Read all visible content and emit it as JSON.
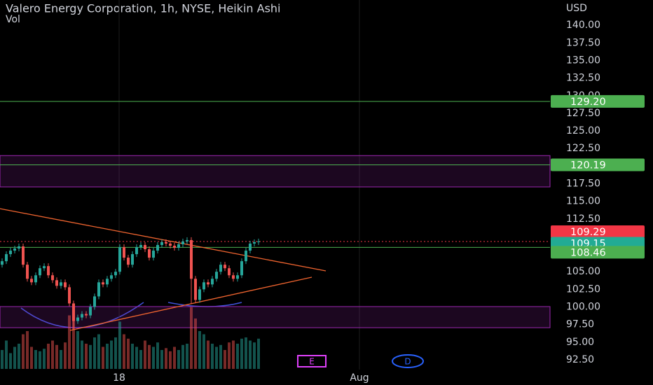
{
  "chart_data": {
    "type": "candlestick",
    "title": "Valero Energy Corporation, 1h, NYSE, Heikin Ashi",
    "subtitle": "Vol",
    "currency": "USD",
    "up_color": "#26a69a",
    "down_color": "#ef5350",
    "xlim": [
      -0.5,
      130.33
    ],
    "ylim": [
      91.1,
      143.6
    ],
    "xticks": [
      {
        "value": 27.83,
        "label": "18"
      },
      {
        "value": 85,
        "label": "Aug"
      }
    ],
    "yticks": [
      {
        "value": 92.5,
        "label": "92.50"
      },
      {
        "value": 95,
        "label": "95.00"
      },
      {
        "value": 97.5,
        "label": "97.50"
      },
      {
        "value": 100,
        "label": "100.00"
      },
      {
        "value": 102.5,
        "label": "102.50"
      },
      {
        "value": 105,
        "label": "105.00"
      },
      {
        "value": 107.5,
        "label": "107.50"
      },
      {
        "value": 110,
        "label": "110.00"
      },
      {
        "value": 112.5,
        "label": "112.50"
      },
      {
        "value": 115,
        "label": "115.00"
      },
      {
        "value": 117.5,
        "label": "117.50"
      },
      {
        "value": 120,
        "label": "120.00"
      },
      {
        "value": 122.5,
        "label": "122.50"
      },
      {
        "value": 125,
        "label": "125.00"
      },
      {
        "value": 127.5,
        "label": "127.50"
      },
      {
        "value": 130,
        "label": "130.00"
      },
      {
        "value": 132.5,
        "label": "132.50"
      },
      {
        "value": 135,
        "label": "135.00"
      },
      {
        "value": 137.5,
        "label": "137.50"
      },
      {
        "value": 140,
        "label": "140.00"
      }
    ],
    "open": [
      106.0,
      106.5,
      107.5,
      108.0,
      108.3,
      108.6,
      106.0,
      104.0,
      103.5,
      104.5,
      105.5,
      105.8,
      104.5,
      103.8,
      103.0,
      103.5,
      102.8,
      100.5,
      98.0,
      98.5,
      99.0,
      98.8,
      100.0,
      101.5,
      103.5,
      103.2,
      104.0,
      104.5,
      105.0,
      108.5,
      107.0,
      106.0,
      107.5,
      108.5,
      108.8,
      108.2,
      107.0,
      108.0,
      108.8,
      109.2,
      109.0,
      108.7,
      108.4,
      108.9,
      109.3,
      109.5,
      104.0,
      101.0,
      102.5,
      103.5,
      103.2,
      104.0,
      105.0,
      106.0,
      105.5,
      104.5,
      104.0,
      104.5,
      106.5,
      108.0,
      109.0,
      109.2
    ],
    "high": [
      106.9,
      107.9,
      108.4,
      108.7,
      109.0,
      109.0,
      106.4,
      104.4,
      104.9,
      105.9,
      106.2,
      106.2,
      104.9,
      104.2,
      103.9,
      103.9,
      103.2,
      100.9,
      98.9,
      99.4,
      99.4,
      100.4,
      101.9,
      103.9,
      103.9,
      104.4,
      104.9,
      105.4,
      108.9,
      108.9,
      107.4,
      107.9,
      108.9,
      109.2,
      109.2,
      108.6,
      108.4,
      109.2,
      109.6,
      109.6,
      109.4,
      109.1,
      109.3,
      109.7,
      109.9,
      109.9,
      104.4,
      102.9,
      103.9,
      103.9,
      104.4,
      105.4,
      106.4,
      106.4,
      105.9,
      104.9,
      104.9,
      106.9,
      108.4,
      109.4,
      109.6,
      109.7
    ],
    "low": [
      105.6,
      106.1,
      107.1,
      107.6,
      107.9,
      105.6,
      103.6,
      103.1,
      103.1,
      104.1,
      105.1,
      104.1,
      103.4,
      102.6,
      102.6,
      102.4,
      100.1,
      96.8,
      97.6,
      98.1,
      98.4,
      98.4,
      99.6,
      101.1,
      102.8,
      102.8,
      103.6,
      104.1,
      104.6,
      106.6,
      105.6,
      105.6,
      107.1,
      108.1,
      107.8,
      106.6,
      106.6,
      107.6,
      108.4,
      108.6,
      108.3,
      108.0,
      108.0,
      108.5,
      108.9,
      100.5,
      100.6,
      100.6,
      102.1,
      102.8,
      102.8,
      103.6,
      104.6,
      105.1,
      104.1,
      103.6,
      103.6,
      104.1,
      106.1,
      107.6,
      108.6,
      108.8
    ],
    "close": [
      106.5,
      107.5,
      108.0,
      108.3,
      108.6,
      106.0,
      104.0,
      103.5,
      104.5,
      105.5,
      105.8,
      104.5,
      103.8,
      103.0,
      103.5,
      102.8,
      100.5,
      98.0,
      98.5,
      99.0,
      98.8,
      100.0,
      101.5,
      103.5,
      103.2,
      104.0,
      104.5,
      105.0,
      108.5,
      107.0,
      106.0,
      107.5,
      108.5,
      108.8,
      108.2,
      107.0,
      108.0,
      108.8,
      109.2,
      109.0,
      108.7,
      108.4,
      108.9,
      109.3,
      109.5,
      104.0,
      101.0,
      102.5,
      103.5,
      103.2,
      104.0,
      105.0,
      106.0,
      105.5,
      104.5,
      104.0,
      104.5,
      106.5,
      108.0,
      109.0,
      109.2,
      109.3
    ],
    "volume": [
      30,
      45,
      25,
      35,
      40,
      55,
      60,
      35,
      30,
      28,
      32,
      40,
      45,
      38,
      30,
      42,
      85,
      95,
      60,
      45,
      40,
      38,
      50,
      55,
      35,
      40,
      45,
      50,
      75,
      55,
      48,
      40,
      35,
      30,
      45,
      38,
      35,
      42,
      30,
      33,
      28,
      35,
      30,
      38,
      40,
      98,
      80,
      60,
      55,
      45,
      40,
      35,
      38,
      30,
      42,
      45,
      40,
      48,
      50,
      45,
      42,
      48
    ],
    "levels": [
      {
        "value": 129.2,
        "label": "129.20",
        "color": "#4caf50"
      },
      {
        "value": 120.19,
        "label": "120.19",
        "color": "#4caf50"
      },
      {
        "value": 108.46,
        "label": "108.46",
        "color": "#4caf50"
      }
    ],
    "last_price": {
      "value": 109.29,
      "label": "109.29",
      "color": "#f23645"
    },
    "close_price": {
      "value": 109.15,
      "label": "109.15",
      "color": "#22ab94"
    },
    "zones": [
      [
        121.5,
        117.05
      ],
      [
        100.05,
        97.05
      ]
    ],
    "zone_color": "#9c27b0",
    "trendlines": [
      {
        "x": [
          -0.5,
          77
        ],
        "values": [
          113.96,
          105.12
        ],
        "color": "#f0642f"
      },
      {
        "x": [
          16.17,
          73.67
        ],
        "values": [
          96.67,
          104.23
        ],
        "color": "#f0642f"
      }
    ],
    "events": [
      {
        "label": "E",
        "x": 73.67,
        "color": "#e040fb"
      },
      {
        "label": "D",
        "x": 96.5,
        "color": "#2962ff"
      }
    ]
  }
}
